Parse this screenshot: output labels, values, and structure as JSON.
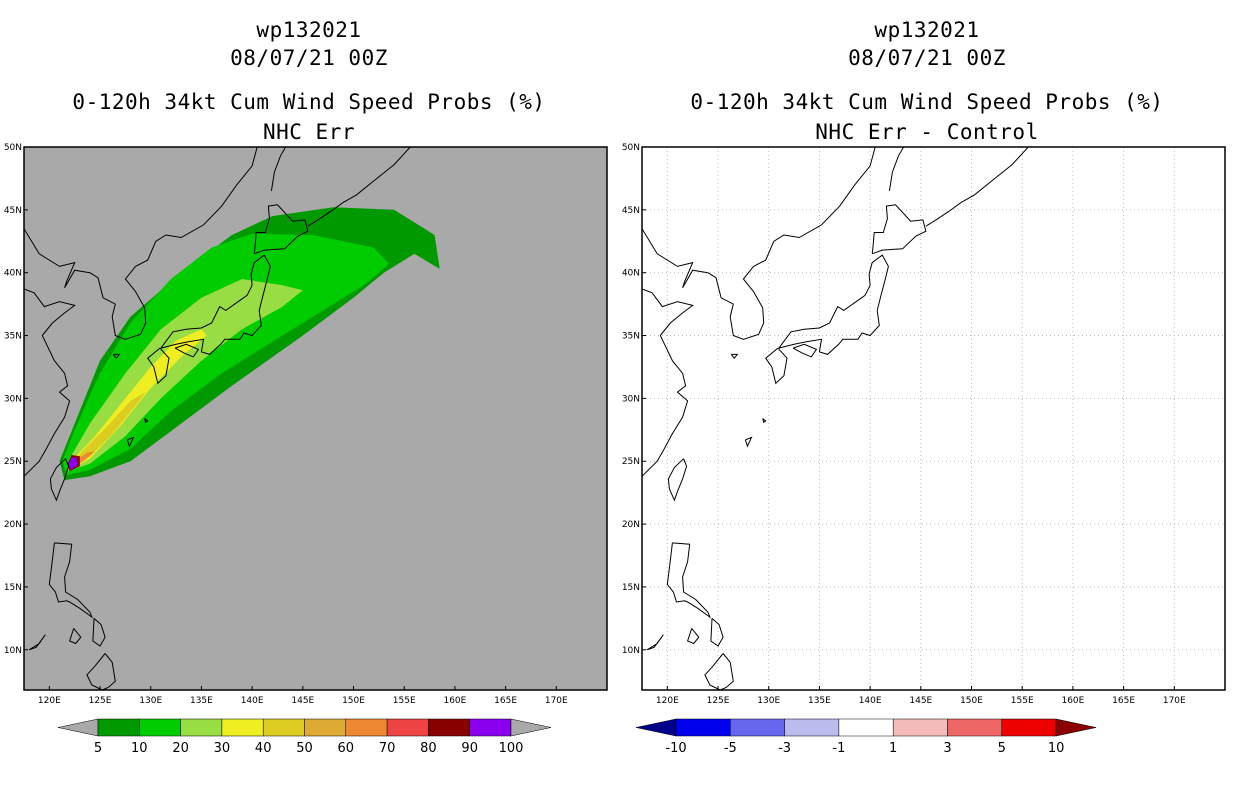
{
  "panels": [
    {
      "id": "left",
      "title_line1": "wp132021",
      "title_line2": "08/07/21 00Z",
      "title_line3": "0-120h 34kt Cum Wind Speed Probs (%)",
      "title_line4": "NHC Err",
      "background": "#a9a9a9"
    },
    {
      "id": "right",
      "title_line1": "wp132021",
      "title_line2": "08/07/21 00Z",
      "title_line3": "0-120h 34kt Cum Wind Speed Probs (%)",
      "title_line4": "NHC Err - Control",
      "background": "#ffffff"
    }
  ],
  "map": {
    "lon_ticks": [
      "120E",
      "125E",
      "130E",
      "135E",
      "140E",
      "145E",
      "150E",
      "155E",
      "160E",
      "165E",
      "170E"
    ],
    "lat_ticks": [
      "50N",
      "45N",
      "40N",
      "35N",
      "30N",
      "25N",
      "20N",
      "15N",
      "10N"
    ],
    "lon_range": [
      117.5,
      175
    ],
    "lat_range": [
      6.8,
      50
    ]
  },
  "colorbar_left": {
    "labels": [
      "5",
      "10",
      "20",
      "30",
      "40",
      "50",
      "60",
      "70",
      "80",
      "90",
      "100"
    ],
    "colors": [
      "#a9a9a9",
      "#009a00",
      "#00cc00",
      "#99dd44",
      "#eeee22",
      "#ddcc22",
      "#ddaa33",
      "#ee8833",
      "#ee4444",
      "#880000",
      "#8800ee",
      "#a9a9a9"
    ]
  },
  "colorbar_right": {
    "labels": [
      "-10",
      "-5",
      "-3",
      "-1",
      "1",
      "3",
      "5",
      "10"
    ],
    "colors": [
      "#00008b",
      "#0000ee",
      "#6666ee",
      "#bbbbee",
      "#ffffff",
      "#f4bbbb",
      "#ee6666",
      "#ee0000",
      "#8b0000"
    ]
  },
  "probability_swath": [
    {
      "level": 5,
      "color": "#009a00",
      "points": [
        [
          121.5,
          23.5
        ],
        [
          124,
          23.8
        ],
        [
          128,
          25
        ],
        [
          133,
          28
        ],
        [
          138,
          31
        ],
        [
          145,
          35
        ],
        [
          150,
          38
        ],
        [
          153,
          40
        ],
        [
          156,
          41.5
        ],
        [
          158.5,
          40.3
        ],
        [
          158,
          43
        ],
        [
          154,
          45
        ],
        [
          148,
          45.2
        ],
        [
          142,
          44.5
        ],
        [
          138,
          43
        ],
        [
          133,
          40
        ],
        [
          128,
          36.5
        ],
        [
          125,
          33
        ],
        [
          122.5,
          28
        ],
        [
          121,
          25
        ]
      ]
    },
    {
      "level": 10,
      "color": "#00cc00",
      "points": [
        [
          121.7,
          23.9
        ],
        [
          124,
          24.3
        ],
        [
          128,
          26
        ],
        [
          132,
          29
        ],
        [
          137,
          32
        ],
        [
          142,
          34.5
        ],
        [
          147,
          37
        ],
        [
          151,
          39
        ],
        [
          153.5,
          40.7
        ],
        [
          152,
          42
        ],
        [
          146,
          43
        ],
        [
          140,
          43.1
        ],
        [
          136,
          42
        ],
        [
          132,
          39.5
        ],
        [
          128,
          36
        ],
        [
          125,
          32
        ],
        [
          122.5,
          27.5
        ],
        [
          121.3,
          25
        ]
      ]
    },
    {
      "level": 20,
      "color": "#99dd44",
      "points": [
        [
          121.8,
          24.2
        ],
        [
          124,
          24.8
        ],
        [
          127.5,
          27
        ],
        [
          131,
          30
        ],
        [
          135,
          33
        ],
        [
          139,
          35.5
        ],
        [
          143,
          37.3
        ],
        [
          145,
          38.6
        ],
        [
          143,
          39
        ],
        [
          139,
          39.5
        ],
        [
          135,
          38
        ],
        [
          131,
          35.5
        ],
        [
          127.5,
          32
        ],
        [
          124,
          28
        ],
        [
          122,
          25.2
        ]
      ]
    },
    {
      "level": 30,
      "color": "#eeee22",
      "points": [
        [
          122,
          24.3
        ],
        [
          124,
          25.2
        ],
        [
          127,
          27.8
        ],
        [
          130,
          30.8
        ],
        [
          133,
          33.3
        ],
        [
          135.5,
          35
        ],
        [
          135,
          35.5
        ],
        [
          132.5,
          34.6
        ],
        [
          130,
          32.5
        ],
        [
          127,
          29.5
        ],
        [
          124.5,
          27
        ],
        [
          122.4,
          25.2
        ]
      ]
    },
    {
      "level": 40,
      "color": "#ddcc22",
      "points": [
        [
          122.3,
          24.4
        ],
        [
          124,
          25.4
        ],
        [
          126,
          27
        ],
        [
          128.5,
          29.4
        ],
        [
          129.5,
          30.5
        ],
        [
          128,
          29.8
        ],
        [
          125.5,
          27.6
        ],
        [
          123.5,
          26
        ],
        [
          122.4,
          25
        ]
      ]
    },
    {
      "level": 60,
      "color": "#ee8833",
      "points": [
        [
          122.4,
          24.5
        ],
        [
          123.5,
          25.1
        ],
        [
          124.5,
          25.8
        ],
        [
          123.8,
          25.7
        ],
        [
          122.8,
          25.2
        ]
      ]
    },
    {
      "level": 90,
      "color": "#880000",
      "points": [
        [
          122,
          24.2
        ],
        [
          123,
          24.6
        ],
        [
          123,
          25.4
        ],
        [
          122.2,
          25.5
        ],
        [
          121.8,
          24.8
        ]
      ]
    },
    {
      "level": 100,
      "color": "#8800ee",
      "points": [
        [
          122.1,
          24.3
        ],
        [
          122.8,
          24.7
        ],
        [
          122.7,
          25.3
        ],
        [
          122.2,
          25.3
        ],
        [
          121.9,
          24.8
        ]
      ]
    }
  ],
  "coastlines": [
    [
      [
        117.5,
        43.5
      ],
      [
        119,
        41.5
      ],
      [
        121,
        40.5
      ],
      [
        122.5,
        40.8
      ],
      [
        121.7,
        39.3
      ],
      [
        121.5,
        38.8
      ],
      [
        122.5,
        40.2
      ],
      [
        124,
        40
      ]
    ],
    [
      [
        117.5,
        38.7
      ],
      [
        118.5,
        38.4
      ],
      [
        119.5,
        37.3
      ],
      [
        121,
        37.7
      ],
      [
        122.5,
        37.4
      ],
      [
        121.5,
        36.8
      ],
      [
        120.3,
        36
      ],
      [
        119.3,
        35
      ],
      [
        120.5,
        33
      ],
      [
        121.5,
        32
      ],
      [
        121.8,
        31
      ],
      [
        121,
        30.5
      ],
      [
        122,
        29.8
      ],
      [
        121.5,
        28.5
      ],
      [
        120.5,
        27.2
      ],
      [
        119.7,
        26
      ],
      [
        119,
        25
      ],
      [
        117.5,
        23.8
      ]
    ],
    [
      [
        124,
        40
      ],
      [
        124.8,
        39.6
      ],
      [
        125.3,
        38
      ],
      [
        126.5,
        37.5
      ],
      [
        126.2,
        36.5
      ],
      [
        126.5,
        35
      ],
      [
        127.5,
        34.7
      ],
      [
        129,
        35.1
      ],
      [
        129.5,
        36
      ],
      [
        129.4,
        37.2
      ],
      [
        128.5,
        38.5
      ],
      [
        127.5,
        39.5
      ],
      [
        128.5,
        40.5
      ],
      [
        129.7,
        41
      ],
      [
        130.5,
        42.5
      ],
      [
        131.5,
        43
      ],
      [
        133,
        42.8
      ],
      [
        135.2,
        43.8
      ],
      [
        137,
        45.3
      ],
      [
        138.5,
        47
      ],
      [
        140,
        48.5
      ],
      [
        140.5,
        50
      ]
    ],
    [
      [
        130.9,
        34
      ],
      [
        131.8,
        33.2
      ],
      [
        131.5,
        31.8
      ],
      [
        130.7,
        31.2
      ],
      [
        130.3,
        32.5
      ],
      [
        129.7,
        33.2
      ],
      [
        130.9,
        34
      ]
    ],
    [
      [
        131,
        34
      ],
      [
        132.5,
        34.3
      ],
      [
        133.7,
        34.5
      ],
      [
        135.2,
        34.7
      ],
      [
        135,
        33.7
      ],
      [
        135.8,
        33.5
      ],
      [
        136.9,
        34.3
      ],
      [
        137.3,
        34.7
      ],
      [
        138.8,
        34.7
      ],
      [
        139.2,
        35.2
      ],
      [
        140,
        35
      ],
      [
        140.9,
        35.8
      ],
      [
        140.7,
        37
      ],
      [
        141.1,
        38.3
      ],
      [
        141.5,
        39.5
      ],
      [
        141.8,
        40.5
      ],
      [
        141.2,
        41.4
      ],
      [
        140.2,
        40.8
      ],
      [
        139.9,
        39.9
      ],
      [
        140,
        39
      ],
      [
        139.5,
        38.2
      ],
      [
        138.8,
        37.8
      ],
      [
        137.4,
        37
      ],
      [
        136.8,
        37.3
      ],
      [
        136,
        36
      ],
      [
        135,
        35.6
      ],
      [
        133.5,
        35.5
      ],
      [
        132.2,
        35.3
      ],
      [
        131,
        34
      ]
    ],
    [
      [
        132.4,
        34
      ],
      [
        133.3,
        33.6
      ],
      [
        134.2,
        33.3
      ],
      [
        134.7,
        33.9
      ],
      [
        133.5,
        34.3
      ],
      [
        132.4,
        34
      ]
    ],
    [
      [
        140.2,
        41.5
      ],
      [
        141.2,
        41.8
      ],
      [
        143.2,
        41.9
      ],
      [
        144.5,
        42.9
      ],
      [
        145.5,
        43.3
      ],
      [
        145.2,
        44.2
      ],
      [
        144,
        44.1
      ],
      [
        142.5,
        45.4
      ],
      [
        141.6,
        45.3
      ],
      [
        141.7,
        44.3
      ],
      [
        141.3,
        43.2
      ],
      [
        140.4,
        43.2
      ],
      [
        140.3,
        42.2
      ],
      [
        140.2,
        41.5
      ]
    ],
    [
      [
        141.9,
        46.5
      ],
      [
        142.2,
        48
      ],
      [
        142.8,
        49.3
      ],
      [
        143.3,
        50
      ]
    ],
    [
      [
        145.5,
        43.7
      ],
      [
        146.7,
        44.3
      ],
      [
        147.8,
        44.9
      ],
      [
        149,
        45.6
      ],
      [
        150.3,
        46.2
      ],
      [
        152,
        47.3
      ],
      [
        154,
        48.6
      ],
      [
        155.6,
        50
      ]
    ],
    [
      [
        121.6,
        25.2
      ],
      [
        121.9,
        24.6
      ],
      [
        121.5,
        23.6
      ],
      [
        121,
        22.6
      ],
      [
        120.7,
        21.9
      ],
      [
        120.2,
        22.8
      ],
      [
        120.1,
        23.6
      ],
      [
        120.7,
        24.5
      ],
      [
        121.6,
        25.2
      ]
    ],
    [
      [
        120.5,
        18.5
      ],
      [
        122.2,
        18.4
      ],
      [
        122,
        17
      ],
      [
        121.5,
        15.8
      ],
      [
        121.6,
        14.6
      ],
      [
        122.8,
        14
      ],
      [
        124,
        13
      ],
      [
        124.2,
        12.6
      ],
      [
        123,
        13.3
      ],
      [
        122,
        13.8
      ],
      [
        121.7,
        13.9
      ],
      [
        120.9,
        13.8
      ],
      [
        120.6,
        14.6
      ],
      [
        120,
        15.2
      ],
      [
        120.2,
        16.5
      ],
      [
        120.5,
        18.5
      ]
    ],
    [
      [
        124.4,
        12.5
      ],
      [
        125.1,
        12
      ],
      [
        125.5,
        11
      ],
      [
        125,
        10.3
      ],
      [
        124.3,
        10.7
      ],
      [
        124.4,
        12.5
      ]
    ],
    [
      [
        122.4,
        11.7
      ],
      [
        123.1,
        11
      ],
      [
        122.6,
        10.5
      ],
      [
        122,
        10.7
      ],
      [
        122.4,
        11.7
      ]
    ],
    [
      [
        118,
        10
      ],
      [
        119,
        10.5
      ],
      [
        119.6,
        11.2
      ],
      [
        118.7,
        10.2
      ],
      [
        118,
        10
      ]
    ],
    [
      [
        125.5,
        9.7
      ],
      [
        126.2,
        9
      ],
      [
        126.5,
        7.5
      ],
      [
        125.8,
        7
      ],
      [
        125.2,
        6.8
      ],
      [
        124.2,
        7.2
      ],
      [
        123.7,
        8
      ],
      [
        124.5,
        8.7
      ],
      [
        125.5,
        9.7
      ]
    ],
    [
      [
        127.7,
        26.7
      ],
      [
        128.3,
        26.9
      ],
      [
        127.9,
        26.2
      ],
      [
        127.7,
        26.7
      ]
    ],
    [
      [
        129.4,
        28.4
      ],
      [
        129.7,
        28.2
      ],
      [
        129.5,
        28.1
      ],
      [
        129.4,
        28.4
      ]
    ],
    [
      [
        126.3,
        33.5
      ],
      [
        126.9,
        33.5
      ],
      [
        126.6,
        33.2
      ],
      [
        126.3,
        33.5
      ]
    ]
  ]
}
